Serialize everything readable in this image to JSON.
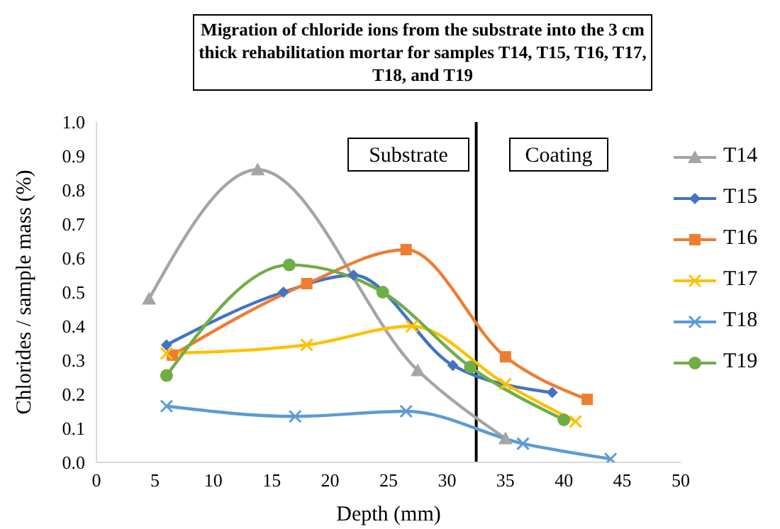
{
  "chart_data": {
    "type": "line",
    "title": "Migration of chloride ions from the substrate into the 3 cm thick rehabilitation mortar for samples T14, T15, T16, T17, T18, and T19",
    "xlabel": "Depth (mm)",
    "ylabel": "Chlorides / sample mass (%)",
    "xlim": [
      0,
      50
    ],
    "xticks": [
      0,
      5,
      10,
      15,
      20,
      25,
      30,
      35,
      40,
      45,
      50
    ],
    "ylim": [
      0,
      1
    ],
    "yticks": [
      {
        "value": 0,
        "label": "0.0"
      },
      0.1,
      0.2,
      0.3,
      0.4,
      0.5,
      0.6,
      0.7,
      0.8,
      0.9,
      {
        "value": 1,
        "label": "1.0"
      }
    ],
    "legend": "right",
    "ref_lines": [
      {
        "axis": "x",
        "value": 32.5,
        "color": "#000000"
      }
    ],
    "annotations": [
      "Substrate",
      "Coating"
    ],
    "series": [
      {
        "name": "T14",
        "color": "#a5a5a5",
        "marker": "triangle",
        "x": [
          4.5,
          13.8,
          27.5,
          35
        ],
        "values": [
          0.48,
          0.86,
          0.27,
          0.07
        ]
      },
      {
        "name": "T15",
        "color": "#4472c4",
        "marker": "diamond",
        "x": [
          6,
          16,
          22,
          30.5,
          39
        ],
        "values": [
          0.345,
          0.5,
          0.55,
          0.285,
          0.205
        ]
      },
      {
        "name": "T16",
        "color": "#ed7d31",
        "marker": "square",
        "x": [
          6.5,
          18,
          26.5,
          35,
          42
        ],
        "values": [
          0.315,
          0.525,
          0.625,
          0.31,
          0.185
        ]
      },
      {
        "name": "T17",
        "color": "#ffc000",
        "marker": "cross",
        "x": [
          6,
          18,
          27,
          35,
          41
        ],
        "values": [
          0.32,
          0.345,
          0.4,
          0.23,
          0.12
        ]
      },
      {
        "name": "T18",
        "color": "#5b9bd5",
        "marker": "cross",
        "x": [
          6,
          17,
          26.5,
          36.5,
          44
        ],
        "values": [
          0.165,
          0.135,
          0.15,
          0.055,
          0.01
        ]
      },
      {
        "name": "T19",
        "color": "#70ad47",
        "marker": "circle",
        "x": [
          6,
          16.5,
          24.5,
          32,
          40
        ],
        "values": [
          0.255,
          0.58,
          0.5,
          0.28,
          0.125
        ]
      }
    ]
  }
}
